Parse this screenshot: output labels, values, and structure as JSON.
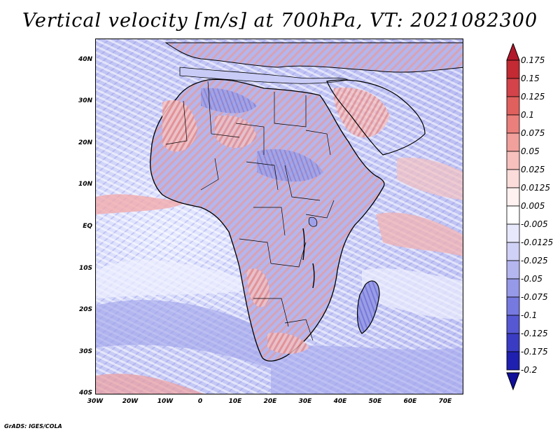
{
  "title": "Vertical velocity [m/s] at 700hPa, VT: 2021082300",
  "credit": "GrADS: IGES/COLA",
  "map": {
    "lat_labels": [
      "40N",
      "30N",
      "20N",
      "10N",
      "EQ",
      "10S",
      "20S",
      "30S",
      "40S"
    ],
    "lon_labels": [
      "30W",
      "20W",
      "10W",
      "0",
      "10E",
      "20E",
      "30E",
      "40E",
      "50E",
      "60E",
      "70E"
    ],
    "lat_range": [
      -40,
      45
    ],
    "lon_range": [
      -30,
      75
    ]
  },
  "colorbar": {
    "labels": [
      "0.175",
      "0.15",
      "0.125",
      "0.1",
      "0.075",
      "0.05",
      "0.025",
      "0.0125",
      "0.005",
      "-0.005",
      "-0.0125",
      "-0.025",
      "-0.05",
      "-0.075",
      "-0.1",
      "-0.125",
      "-0.175",
      "-0.2"
    ],
    "colors": [
      "#b2182b",
      "#c32a33",
      "#d4434a",
      "#e0605e",
      "#ea7f7b",
      "#f2a09c",
      "#f7c0bc",
      "#fbdcda",
      "#fff1f0",
      "#ffffff",
      "#e7e8fb",
      "#cfd1f6",
      "#b4b6f0",
      "#9698e8",
      "#7679df",
      "#5658d3",
      "#3a3cc4",
      "#1f1fb0",
      "#10109a"
    ]
  }
}
